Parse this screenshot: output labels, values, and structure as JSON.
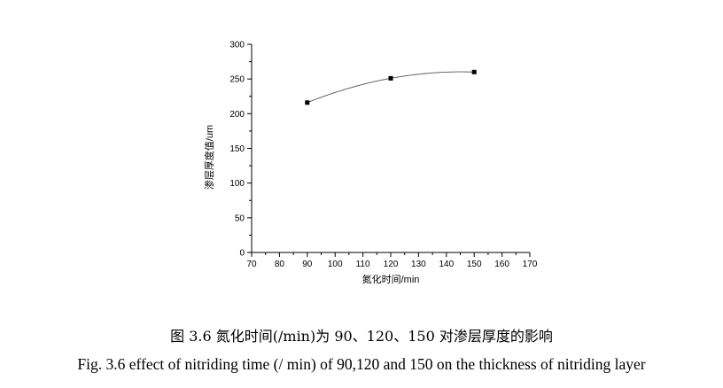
{
  "chart_data": {
    "type": "scatter",
    "x_label": "氮化时间/min",
    "y_label": "渗层厚度值/um",
    "x_range": [
      70,
      170
    ],
    "y_range": [
      0,
      300
    ],
    "x_ticks": [
      70,
      80,
      90,
      100,
      110,
      120,
      130,
      140,
      150,
      160,
      170
    ],
    "y_ticks": [
      0,
      50,
      100,
      150,
      200,
      250,
      300
    ],
    "grid": false,
    "fit_curve": true,
    "points": [
      {
        "x": 90,
        "y": 216
      },
      {
        "x": 120,
        "y": 251
      },
      {
        "x": 150,
        "y": 260
      }
    ]
  },
  "caption": {
    "chinese": "图 3.6  氮化时间(/min)为 90、120、150 对渗层厚度的影响",
    "english": "Fig. 3.6 effect of nitriding time (/ min) of 90,120 and 150 on the thickness of nitriding layer"
  }
}
